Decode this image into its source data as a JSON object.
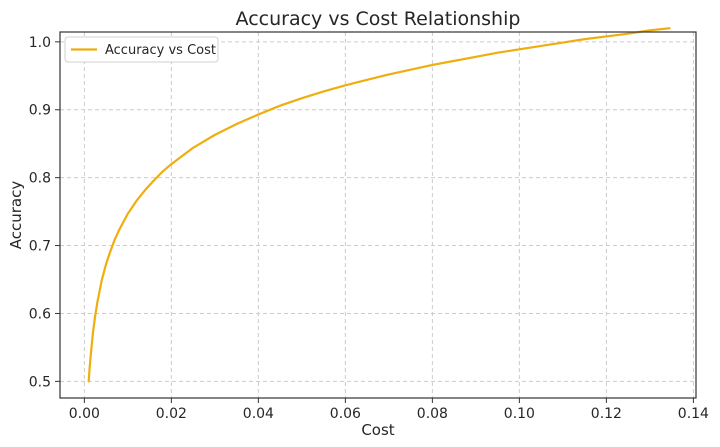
{
  "chart_data": {
    "type": "line",
    "title": "Accuracy vs Cost Relationship",
    "xlabel": "Cost",
    "ylabel": "Accuracy",
    "xlim": [
      -0.0056,
      0.1406
    ],
    "ylim": [
      0.4755,
      1.0145
    ],
    "xticks": [
      0.0,
      0.02,
      0.04,
      0.06,
      0.08,
      0.1,
      0.12,
      0.14
    ],
    "xtick_labels": [
      "0.00",
      "0.02",
      "0.04",
      "0.06",
      "0.08",
      "0.10",
      "0.12",
      "0.14"
    ],
    "yticks": [
      0.5,
      0.6,
      0.7,
      0.8,
      0.9,
      1.0
    ],
    "ytick_labels": [
      "0.5",
      "0.6",
      "0.7",
      "0.8",
      "0.9",
      "1.0"
    ],
    "grid": true,
    "legend_position": "top-left",
    "series": [
      {
        "name": "Accuracy vs Cost",
        "color": "#f0ad0e",
        "x": [
          0.001,
          0.0012,
          0.0015,
          0.002,
          0.0025,
          0.003,
          0.004,
          0.005,
          0.006,
          0.007,
          0.008,
          0.009,
          0.01,
          0.012,
          0.014,
          0.016,
          0.018,
          0.02,
          0.025,
          0.03,
          0.035,
          0.04,
          0.045,
          0.05,
          0.055,
          0.06,
          0.065,
          0.07,
          0.075,
          0.08,
          0.085,
          0.09,
          0.095,
          0.1,
          0.105,
          0.11,
          0.115,
          0.12,
          0.125,
          0.13,
          0.1345
        ],
        "y": [
          0.5,
          0.519,
          0.541,
          0.573,
          0.597,
          0.617,
          0.649,
          0.673,
          0.692,
          0.709,
          0.723,
          0.735,
          0.747,
          0.766,
          0.782,
          0.796,
          0.809,
          0.82,
          0.844,
          0.863,
          0.879,
          0.893,
          0.906,
          0.917,
          0.927,
          0.936,
          0.944,
          0.952,
          0.959,
          0.966,
          0.972,
          0.978,
          0.984,
          0.989,
          0.994,
          0.999,
          1.004,
          1.008,
          1.012,
          1.017,
          1.02
        ]
      }
    ]
  }
}
